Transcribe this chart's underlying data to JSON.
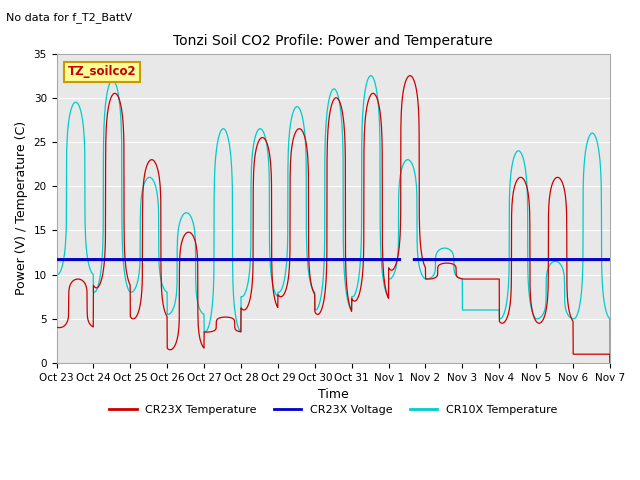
{
  "title": "Tonzi Soil CO2 Profile: Power and Temperature",
  "no_data_label": "No data for f_T2_BattV",
  "xlabel": "Time",
  "ylabel": "Power (V) / Temperature (C)",
  "ylim": [
    0,
    35
  ],
  "yticks": [
    0,
    5,
    10,
    15,
    20,
    25,
    30,
    35
  ],
  "legend_labels": [
    "CR23X Temperature",
    "CR23X Voltage",
    "CR10X Temperature"
  ],
  "legend_colors": [
    "#cc0000",
    "#0000cc",
    "#00cccc"
  ],
  "background_color": "#ffffff",
  "plot_bg_color": "#e8e8e8",
  "annotation_box": "TZ_soilco2",
  "annotation_box_color": "#ffff99",
  "annotation_box_edge": "#cc9900",
  "annotation_text_color": "#cc0000",
  "voltage_value": 11.7,
  "xtick_labels": [
    "Oct 23",
    "Oct 24",
    "Oct 25",
    "Oct 26",
    "Oct 27",
    "Oct 28",
    "Oct 29",
    "Oct 30",
    "Oct 31",
    "Nov 1",
    "Nov 2",
    "Nov 3",
    "Nov 4",
    "Nov 5",
    "Nov 6",
    "Nov 7"
  ],
  "cr23x_peaks": [
    9.5,
    30.5,
    23.0,
    14.8,
    5.2,
    25.5,
    26.5,
    30.0,
    30.5,
    32.5,
    11.3,
    9.5,
    21.0,
    21.0,
    1.0,
    11.5,
    21.2,
    23.5,
    4.5,
    27.0,
    26.5,
    7.2
  ],
  "cr23x_troughs": [
    4.0,
    8.5,
    5.0,
    1.5,
    3.5,
    6.0,
    7.5,
    5.5,
    7.0,
    10.5,
    9.5,
    9.5,
    4.5,
    4.5,
    1.0,
    5.0,
    4.5,
    5.0,
    4.5,
    8.0,
    7.0,
    7.0
  ],
  "cr10x_peaks": [
    29.5,
    32.0,
    21.0,
    17.0,
    26.5,
    26.5,
    29.0,
    31.0,
    32.5,
    23.0,
    13.0,
    6.0,
    24.0,
    11.5,
    26.0,
    25.5,
    29.5,
    9.5
  ],
  "cr10x_troughs": [
    10.0,
    8.0,
    8.0,
    5.5,
    3.5,
    7.5,
    8.0,
    6.0,
    7.5,
    9.5,
    9.5,
    6.0,
    5.0,
    5.0,
    5.0,
    4.5,
    9.5,
    7.0
  ]
}
